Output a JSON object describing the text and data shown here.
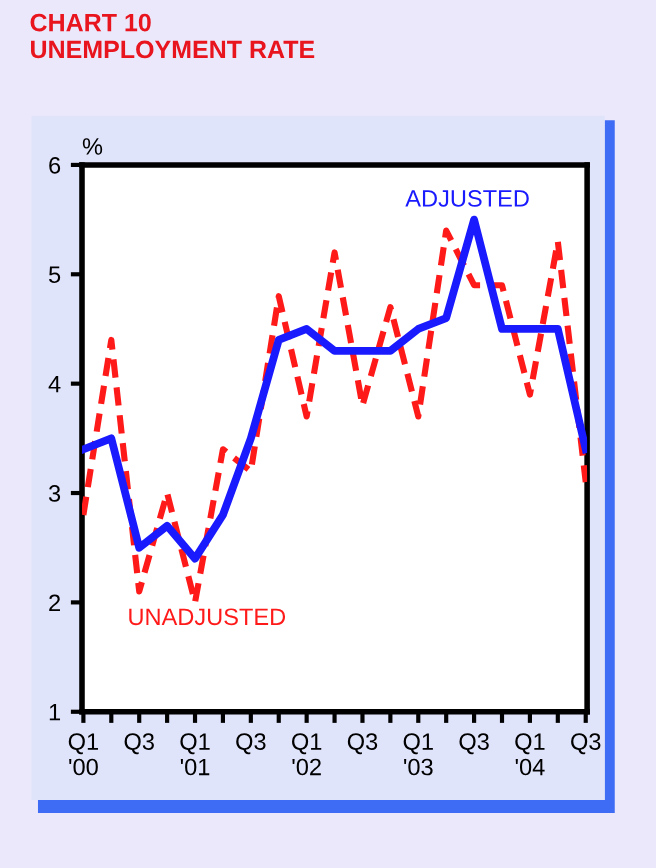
{
  "chart_data": {
    "type": "line",
    "title": "CHART 10\nUNEMPLOYMENT RATE",
    "ylabel": "%",
    "categories": [
      "Q1\n'00",
      null,
      "Q3",
      null,
      "Q1\n'01",
      null,
      "Q3",
      null,
      "Q1\n'02",
      null,
      "Q3",
      null,
      "Q1\n'03",
      null,
      "Q3",
      null,
      "Q1\n'04",
      null,
      "Q3"
    ],
    "series": [
      {
        "name": "UNADJUSTED",
        "color": "#ff1a1a",
        "line_style": "dashed",
        "values": [
          2.8,
          4.4,
          2.1,
          3.0,
          2.0,
          3.4,
          3.2,
          4.8,
          3.7,
          5.2,
          3.8,
          4.7,
          3.7,
          5.4,
          4.9,
          4.9,
          3.9,
          5.3,
          3.1
        ]
      },
      {
        "name": "ADJUSTED",
        "color": "#1a1aff",
        "line_style": "solid",
        "values": [
          3.4,
          3.5,
          2.5,
          2.7,
          2.4,
          2.8,
          3.5,
          4.4,
          4.5,
          4.3,
          4.3,
          4.3,
          4.5,
          4.6,
          5.5,
          4.5,
          4.5,
          4.5,
          3.4
        ]
      }
    ],
    "ylim": [
      1,
      6
    ],
    "yticks": [
      1,
      2,
      3,
      4,
      5,
      6
    ],
    "grid": false,
    "legend": false,
    "marker": "none"
  }
}
